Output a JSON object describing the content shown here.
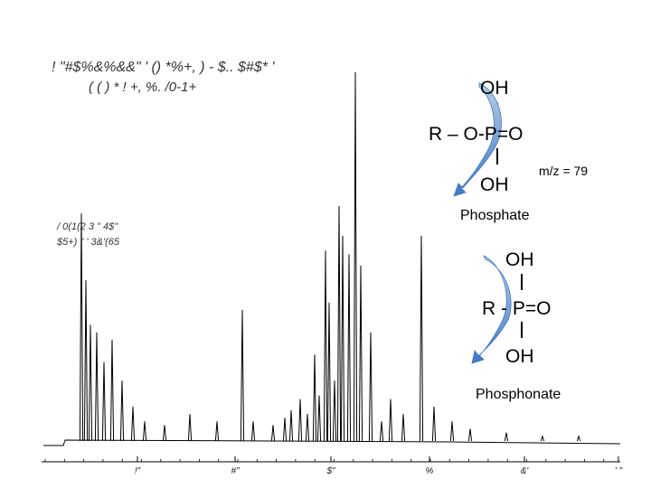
{
  "header": {
    "line1": "! \"#$%&%&&\" ' () *%+, ) - $.. $#$* '",
    "line2": "( ( ) * ! +, %. /0-1+"
  },
  "spectrum_label": {
    "line1": "/ 0(1(2 3 \" 4$\"",
    "line2": "$5+) \" ' 3&'(65"
  },
  "phosphate": {
    "top_oh": "OH",
    "chain": "R – O-P=O",
    "bottom_oh": "OH",
    "mz": "m/z = 79",
    "caption": "Phosphate"
  },
  "phosphonate": {
    "top_oh": "OH",
    "chain": "R - P=O",
    "bottom_oh": "OH",
    "caption": "Phosphonate"
  },
  "colors": {
    "arrow_light": "#b8cde3",
    "arrow_dark": "#3f78c4",
    "spectrum": "#000000"
  },
  "chart_data": {
    "type": "line",
    "title": "",
    "xlabel": "",
    "ylabel": "",
    "x_tick_labels": [
      "!\"",
      "#\"",
      "$\"",
      "%",
      "&'",
      "' \""
    ],
    "xlim": [
      0,
      6.3
    ],
    "ylim": [
      0,
      100
    ],
    "grid": false,
    "peaks": [
      {
        "x": 0.3,
        "height": 62
      },
      {
        "x": 0.35,
        "height": 44
      },
      {
        "x": 0.4,
        "height": 32
      },
      {
        "x": 0.47,
        "height": 30
      },
      {
        "x": 0.55,
        "height": 22
      },
      {
        "x": 0.64,
        "height": 28
      },
      {
        "x": 0.75,
        "height": 17
      },
      {
        "x": 0.87,
        "height": 10
      },
      {
        "x": 1.0,
        "height": 6
      },
      {
        "x": 1.22,
        "height": 5
      },
      {
        "x": 1.5,
        "height": 8
      },
      {
        "x": 1.8,
        "height": 6
      },
      {
        "x": 2.08,
        "height": 36
      },
      {
        "x": 2.2,
        "height": 6
      },
      {
        "x": 2.42,
        "height": 5
      },
      {
        "x": 2.55,
        "height": 7
      },
      {
        "x": 2.62,
        "height": 9
      },
      {
        "x": 2.72,
        "height": 12
      },
      {
        "x": 2.8,
        "height": 8
      },
      {
        "x": 2.88,
        "height": 24
      },
      {
        "x": 2.93,
        "height": 13
      },
      {
        "x": 3.0,
        "height": 52
      },
      {
        "x": 3.04,
        "height": 38
      },
      {
        "x": 3.1,
        "height": 17
      },
      {
        "x": 3.15,
        "height": 64
      },
      {
        "x": 3.19,
        "height": 56
      },
      {
        "x": 3.26,
        "height": 51
      },
      {
        "x": 3.33,
        "height": 100
      },
      {
        "x": 3.39,
        "height": 48
      },
      {
        "x": 3.5,
        "height": 30
      },
      {
        "x": 3.62,
        "height": 6
      },
      {
        "x": 3.72,
        "height": 12
      },
      {
        "x": 3.86,
        "height": 8
      },
      {
        "x": 4.06,
        "height": 56
      },
      {
        "x": 4.2,
        "height": 10
      },
      {
        "x": 4.4,
        "height": 6
      },
      {
        "x": 4.6,
        "height": 4
      },
      {
        "x": 5.0,
        "height": 3
      },
      {
        "x": 5.4,
        "height": 2
      },
      {
        "x": 5.8,
        "height": 2
      }
    ]
  }
}
